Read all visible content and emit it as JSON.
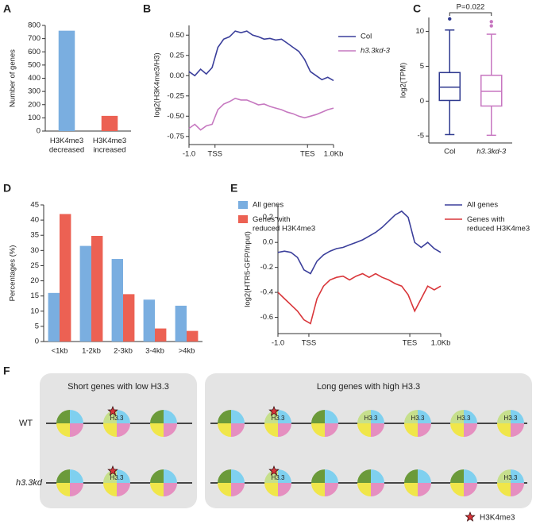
{
  "chart_data": [
    {
      "type": "bar",
      "panel": "A",
      "ylabel": "Number of genes",
      "categories": [
        "H3K4me3\ndecreased",
        "H3K4me3\nincreased"
      ],
      "values": [
        760,
        115
      ],
      "colors": [
        "#7aaee0",
        "#ec6153"
      ],
      "ylim": [
        0,
        800
      ],
      "yticks": [
        0,
        100,
        200,
        300,
        400,
        500,
        600,
        700,
        800
      ]
    },
    {
      "type": "line",
      "panel": "B",
      "ylabel": "log2(H3K4me3/H3)",
      "x": [
        0,
        4,
        8,
        12,
        16,
        20,
        24,
        28,
        32,
        36,
        40,
        44,
        48,
        52,
        56,
        60,
        64,
        68,
        72,
        76,
        80,
        84,
        88,
        92,
        96,
        100
      ],
      "series": [
        {
          "name": "Col",
          "color": "#3b3f9b",
          "values": [
            0.05,
            0.0,
            0.08,
            0.02,
            0.1,
            0.35,
            0.45,
            0.48,
            0.55,
            0.53,
            0.55,
            0.5,
            0.48,
            0.45,
            0.46,
            0.44,
            0.45,
            0.4,
            0.35,
            0.3,
            0.2,
            0.05,
            0.0,
            -0.05,
            -0.02,
            -0.06
          ]
        },
        {
          "name": "h3.3kd-3",
          "color": "#c678c0",
          "values": [
            -0.65,
            -0.6,
            -0.67,
            -0.62,
            -0.6,
            -0.42,
            -0.35,
            -0.32,
            -0.28,
            -0.3,
            -0.3,
            -0.33,
            -0.36,
            -0.35,
            -0.38,
            -0.4,
            -0.42,
            -0.45,
            -0.47,
            -0.5,
            -0.52,
            -0.5,
            -0.48,
            -0.45,
            -0.42,
            -0.4
          ]
        }
      ],
      "xlim": [
        0,
        100
      ],
      "xticks": [
        {
          "value": 0,
          "label": "-1.0"
        },
        {
          "value": 18,
          "label": "TSS"
        },
        {
          "value": 82,
          "label": "TES"
        },
        {
          "value": 100,
          "label": "1.0Kb"
        }
      ],
      "ylim": [
        -0.85,
        0.62
      ],
      "yticks": [
        -0.75,
        {
          "value": -0.5,
          "label": "-0.50"
        },
        -0.25,
        {
          "value": 0,
          "label": "0.00"
        },
        0.25,
        {
          "value": 0.5,
          "label": "0.50"
        }
      ]
    },
    {
      "type": "box",
      "panel": "C",
      "ylabel": "log2(TPM)",
      "annotation": "P=0.022",
      "series": [
        {
          "name": "Col",
          "color": "#2f3a8f",
          "whislo": -4.8,
          "q1": 0.1,
          "median": 2.0,
          "q3": 4.1,
          "whishi": 10.2,
          "fliers": [
            11.8
          ]
        },
        {
          "name": "h3.3kd-3",
          "color": "#c776c0",
          "whislo": -4.9,
          "q1": -0.7,
          "median": 1.4,
          "q3": 3.7,
          "whishi": 9.6,
          "fliers": [
            10.8,
            11.4
          ]
        }
      ],
      "ylim": [
        -6,
        12
      ],
      "yticks": [
        -5,
        0,
        5,
        10
      ]
    },
    {
      "type": "bar",
      "panel": "D",
      "ylabel": "Percentages (%)",
      "categories": [
        "<1kb",
        "1-2kb",
        "2-3kb",
        "3-4kb",
        ">4kb"
      ],
      "series": [
        {
          "name": "All genes",
          "color": "#7aaee0",
          "values": [
            16,
            31.5,
            27.2,
            13.8,
            11.8
          ]
        },
        {
          "name": "Genes with\nreduced H3K4me3",
          "color": "#ec6153",
          "values": [
            42,
            34.8,
            15.6,
            4.3,
            3.5
          ]
        }
      ],
      "ylim": [
        0,
        45
      ],
      "yticks": [
        0,
        5,
        10,
        15,
        20,
        25,
        30,
        35,
        40,
        45
      ]
    },
    {
      "type": "line",
      "panel": "E",
      "ylabel": "log2(HTR5-GFP/Input)",
      "x": [
        0,
        4,
        8,
        12,
        16,
        20,
        24,
        28,
        32,
        36,
        40,
        44,
        48,
        52,
        56,
        60,
        64,
        68,
        72,
        76,
        80,
        84,
        88,
        92,
        96,
        100
      ],
      "series": [
        {
          "name": "All genes",
          "color": "#3b3f9b",
          "values": [
            -0.08,
            -0.07,
            -0.08,
            -0.12,
            -0.22,
            -0.25,
            -0.15,
            -0.1,
            -0.07,
            -0.05,
            -0.04,
            -0.02,
            0.0,
            0.02,
            0.05,
            0.08,
            0.12,
            0.17,
            0.22,
            0.25,
            0.2,
            0.0,
            -0.04,
            0.0,
            -0.05,
            -0.08
          ]
        },
        {
          "name": "Genes with\nreduced H3K4me3",
          "color": "#d9363a",
          "values": [
            -0.4,
            -0.45,
            -0.5,
            -0.55,
            -0.62,
            -0.65,
            -0.45,
            -0.35,
            -0.3,
            -0.28,
            -0.27,
            -0.3,
            -0.27,
            -0.25,
            -0.28,
            -0.25,
            -0.28,
            -0.3,
            -0.33,
            -0.35,
            -0.42,
            -0.55,
            -0.45,
            -0.35,
            -0.38,
            -0.35
          ]
        }
      ],
      "xlim": [
        0,
        100
      ],
      "xticks": [
        {
          "value": 0,
          "label": "-1.0"
        },
        {
          "value": 19,
          "label": "TSS"
        },
        {
          "value": 81,
          "label": "TES"
        },
        {
          "value": 100,
          "label": "1.0Kb"
        }
      ],
      "ylim": [
        -0.73,
        0.3
      ],
      "yticks": [
        -0.6,
        -0.4,
        -0.2,
        {
          "value": 0,
          "label": "0.0"
        },
        0.2
      ]
    }
  ],
  "diagram": {
    "panel": "F",
    "groups": [
      "Short genes with low H3.3",
      "Long genes with high H3.3"
    ],
    "rows": [
      "WT",
      "h3.3kd"
    ],
    "nucleosome_label": "H3.3",
    "legend": "H3K4me3"
  }
}
